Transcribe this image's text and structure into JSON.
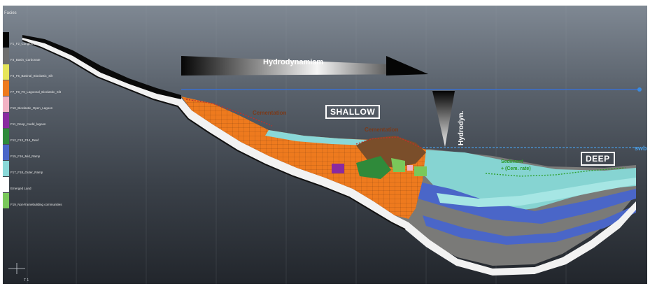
{
  "legend": {
    "title": "Facies",
    "items": [
      {
        "label": "F1_F2_Conglomerate",
        "color": "#050505"
      },
      {
        "label": "F3_Basin_Carbonate",
        "color": "#6e6e6e"
      },
      {
        "label": "F4_F5_Basinal_Bioclastic_Silt",
        "color": "#e6e65a"
      },
      {
        "label": "F7_F8_F9_Lagoonal_Bioclastic_Silt",
        "color": "#ee7a1e"
      },
      {
        "label": "F10_Bioclastic_Open_Lagoon",
        "color": "#f2b2c4"
      },
      {
        "label": "F11_Deep_mudd_lagoon",
        "color": "#8a2aa0"
      },
      {
        "label": "F12_F13_F14_Reef",
        "color": "#2f8a3a"
      },
      {
        "label": "F15_F16_Mid_Ramp",
        "color": "#4a66c8"
      },
      {
        "label": "F17_F18_Outer_Ramp",
        "color": "#8ad8d8"
      },
      {
        "label": "Emerged Land",
        "color": "#ffffff"
      },
      {
        "label": "F19_Non-framebuilding communities",
        "color": "#7ac85a"
      }
    ]
  },
  "labels": {
    "hydrodynamism": "Hydrodynamism",
    "hydrodyn": "Hydrodyn.",
    "shallow": "SHALLOW",
    "deep": "DEEP",
    "cementation_1": "Cementation",
    "cementation_2": "Cementation",
    "sediment_line1": "Sediment",
    "sediment_line2": "+ (Cem. rate)",
    "swb": "swb",
    "axis_label": "T 1"
  },
  "colors": {
    "background_top": "#7f8893",
    "background_bottom": "#22262c",
    "sea_level_line": "#3a6fd0",
    "swb_line": "#4a9ae0",
    "cementation_text": "#7a3a1a",
    "sediment_text": "#2a9a2a"
  }
}
